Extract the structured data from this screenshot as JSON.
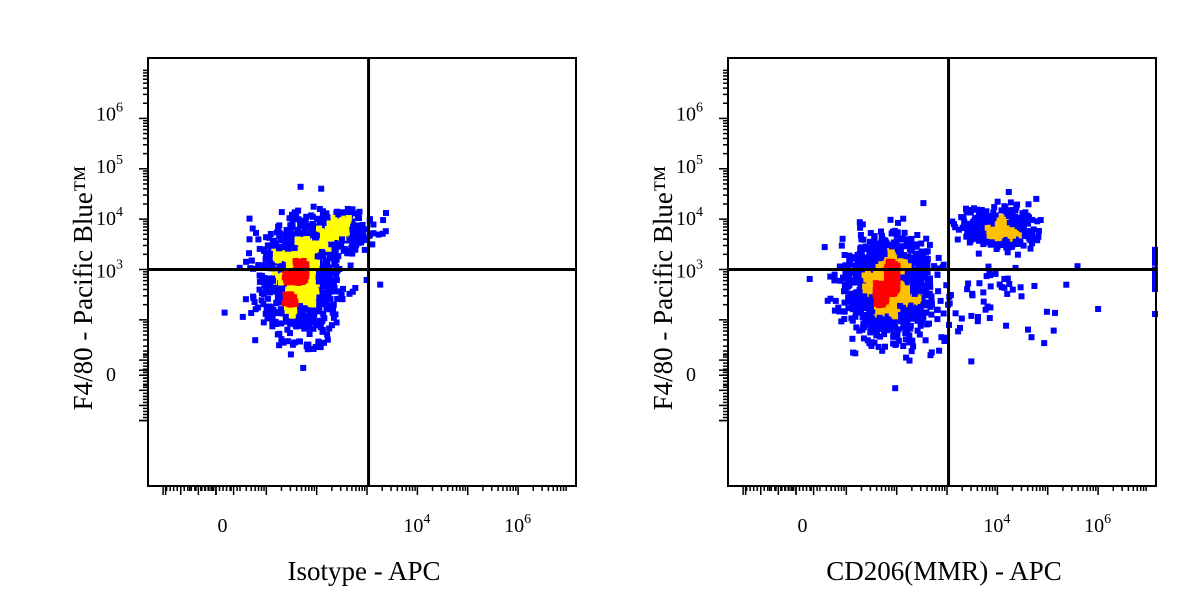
{
  "chart_data": [
    {
      "type": "scatter",
      "plot_style": "flow cytometry density dot plot with quadrant gates",
      "xlabel": "Isotype - APC",
      "ylabel": "F4/80 - Pacific Blue™",
      "x_scale": "biexponential",
      "y_scale": "biexponential",
      "x_ticks": [
        {
          "base": "0",
          "exp": ""
        },
        {
          "base": "10",
          "exp": "4"
        },
        {
          "base": "10",
          "exp": "6"
        }
      ],
      "y_ticks": [
        {
          "base": "0",
          "exp": ""
        },
        {
          "base": "10",
          "exp": "3"
        },
        {
          "base": "10",
          "exp": "4"
        },
        {
          "base": "10",
          "exp": "5"
        },
        {
          "base": "10",
          "exp": "6"
        }
      ],
      "gate_x_log10": 3.0,
      "gate_y_log10": 2.9,
      "density_colors": {
        "low": "#0000ff",
        "medium": "#ffff00",
        "high": "#ff0000"
      },
      "populations": [
        {
          "name": "main",
          "x_center": 1.5,
          "x_spread": 0.7,
          "y_center": 2.6,
          "y_spread": 0.95,
          "count": 1100
        },
        {
          "name": "upper",
          "x_center": 2.3,
          "x_spread": 0.6,
          "y_center": 3.55,
          "y_spread": 0.35,
          "count": 300
        }
      ]
    },
    {
      "type": "scatter",
      "plot_style": "flow cytometry density dot plot with quadrant gates",
      "xlabel": "CD206(MMR) - APC",
      "ylabel": "F4/80 - Pacific Blue™",
      "x_scale": "biexponential",
      "y_scale": "biexponential",
      "x_ticks": [
        {
          "base": "0",
          "exp": ""
        },
        {
          "base": "10",
          "exp": "4"
        },
        {
          "base": "10",
          "exp": "6"
        }
      ],
      "y_ticks": [
        {
          "base": "0",
          "exp": ""
        },
        {
          "base": "10",
          "exp": "3"
        },
        {
          "base": "10",
          "exp": "4"
        },
        {
          "base": "10",
          "exp": "5"
        },
        {
          "base": "10",
          "exp": "6"
        }
      ],
      "gate_x_log10": 3.0,
      "gate_y_log10": 2.9,
      "density_colors": {
        "low": "#0000ff",
        "medium": "#ffc000",
        "high": "#ff0000"
      },
      "populations": [
        {
          "name": "main",
          "x_center": 1.7,
          "x_spread": 0.75,
          "y_center": 2.4,
          "y_spread": 0.9,
          "count": 1300
        },
        {
          "name": "upper-right",
          "x_center": 3.9,
          "x_spread": 0.6,
          "y_center": 3.6,
          "y_spread": 0.35,
          "count": 380
        },
        {
          "name": "scattered",
          "x_center": 3.6,
          "x_spread": 1.4,
          "y_center": 2.3,
          "y_spread": 0.9,
          "count": 60
        },
        {
          "name": "right-edge",
          "x_center": 6.98,
          "x_spread": 0.02,
          "y_center": 2.9,
          "y_spread": 0.7,
          "count": 20
        }
      ]
    }
  ]
}
